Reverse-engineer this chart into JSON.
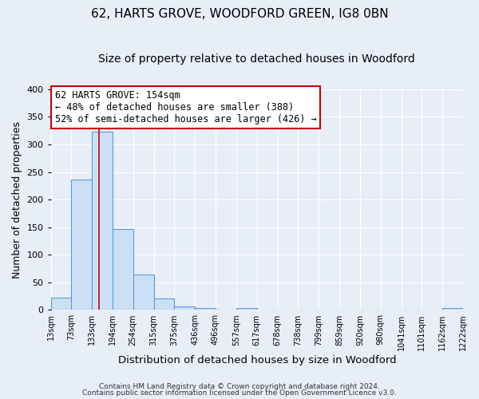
{
  "title": "62, HARTS GROVE, WOODFORD GREEN, IG8 0BN",
  "subtitle": "Size of property relative to detached houses in Woodford",
  "xlabel": "Distribution of detached houses by size in Woodford",
  "ylabel": "Number of detached properties",
  "bin_edges": [
    13,
    73,
    133,
    194,
    254,
    315,
    375,
    436,
    496,
    557,
    617,
    678,
    738,
    799,
    859,
    920,
    980,
    1041,
    1101,
    1162,
    1222
  ],
  "bin_labels": [
    "13sqm",
    "73sqm",
    "133sqm",
    "194sqm",
    "254sqm",
    "315sqm",
    "375sqm",
    "436sqm",
    "496sqm",
    "557sqm",
    "617sqm",
    "678sqm",
    "738sqm",
    "799sqm",
    "859sqm",
    "920sqm",
    "980sqm",
    "1041sqm",
    "1101sqm",
    "1162sqm",
    "1222sqm"
  ],
  "counts": [
    22,
    236,
    323,
    146,
    64,
    21,
    7,
    4,
    0,
    4,
    0,
    0,
    0,
    0,
    0,
    0,
    0,
    0,
    0,
    3
  ],
  "bar_fill": "#cce0f5",
  "bar_edge": "#5b9bd5",
  "reference_line_x": 154,
  "reference_line_color": "#cc0000",
  "ylim": [
    0,
    400
  ],
  "yticks": [
    0,
    50,
    100,
    150,
    200,
    250,
    300,
    350,
    400
  ],
  "annotation_line1": "62 HARTS GROVE: 154sqm",
  "annotation_line2": "← 48% of detached houses are smaller (388)",
  "annotation_line3": "52% of semi-detached houses are larger (426) →",
  "annotation_box_color": "#ffffff",
  "annotation_box_edge": "#cc0000",
  "footer1": "Contains HM Land Registry data © Crown copyright and database right 2024.",
  "footer2": "Contains public sector information licensed under the Open Government Licence v3.0.",
  "bg_color": "#e8eef8",
  "plot_bg_color": "#e8eef8",
  "grid_color": "#ffffff",
  "title_fontsize": 11,
  "subtitle_fontsize": 10
}
